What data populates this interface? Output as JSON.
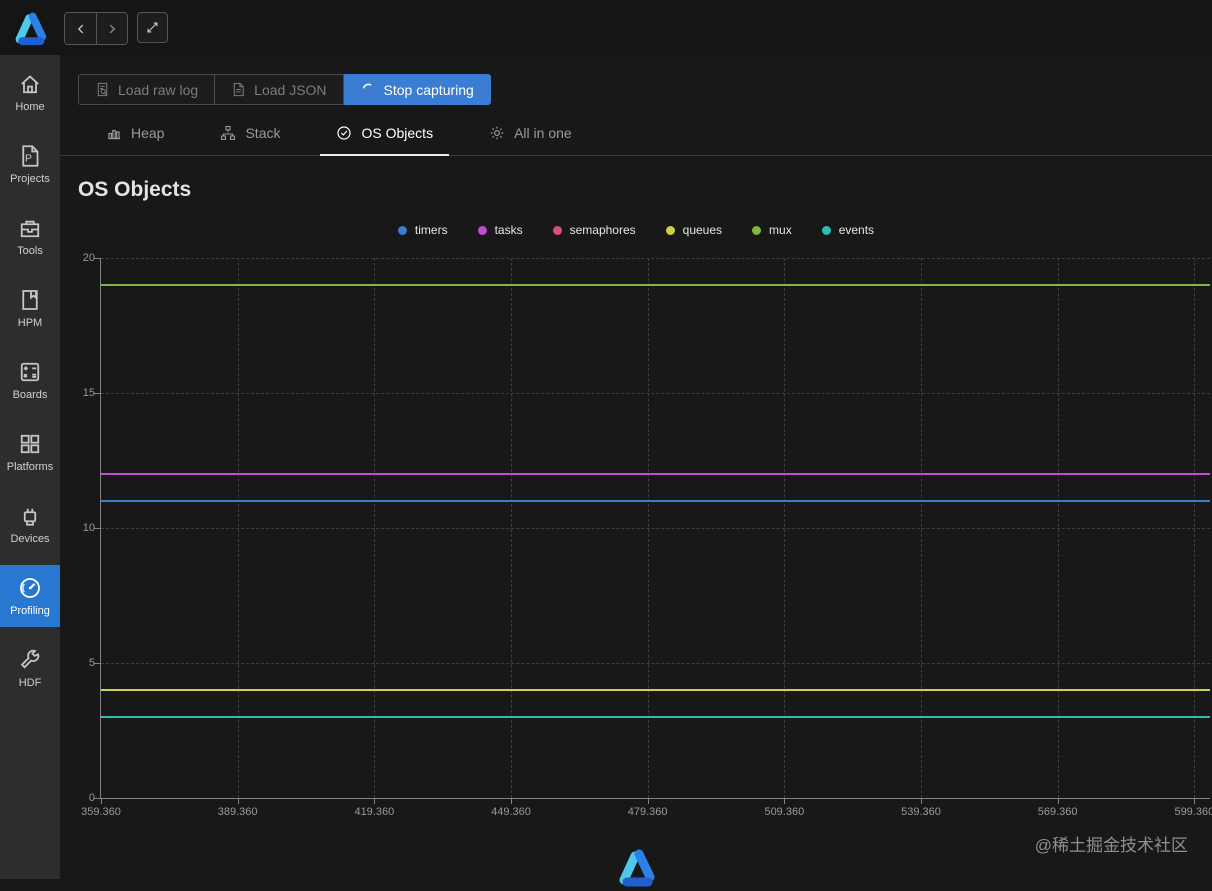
{
  "topbar": {
    "back": "chevron-left",
    "forward": "chevron-right",
    "expand": "expand-arrows"
  },
  "sidebar": {
    "items": [
      {
        "id": "home",
        "label": "Home"
      },
      {
        "id": "projects",
        "label": "Projects"
      },
      {
        "id": "tools",
        "label": "Tools"
      },
      {
        "id": "hpm",
        "label": "HPM"
      },
      {
        "id": "boards",
        "label": "Boards"
      },
      {
        "id": "platforms",
        "label": "Platforms"
      },
      {
        "id": "devices",
        "label": "Devices"
      },
      {
        "id": "profiling",
        "label": "Profiling",
        "active": true
      },
      {
        "id": "hdf",
        "label": "HDF"
      }
    ]
  },
  "toolbar": {
    "load_raw_log": "Load raw log",
    "load_json": "Load JSON",
    "stop_capturing": "Stop capturing"
  },
  "tabs": [
    {
      "label": "Heap"
    },
    {
      "label": "Stack"
    },
    {
      "label": "OS Objects",
      "active": true
    },
    {
      "label": "All in one"
    }
  ],
  "page": {
    "title": "OS Objects"
  },
  "watermark": "@稀土掘金技术社区",
  "colors": {
    "sidebar_active": "#2878d2",
    "button_primary": "#3c7dd4",
    "axis": "#848484",
    "grid": "#3e3e3e"
  },
  "chart_data": {
    "type": "line",
    "title": "OS Objects",
    "legend_position": "top",
    "grid": true,
    "ylim": [
      0,
      20
    ],
    "yticks": [
      0,
      5,
      10,
      15,
      20
    ],
    "xlim": [
      359.36,
      602.8
    ],
    "xticks": [
      "359.360",
      "389.360",
      "419.360",
      "449.360",
      "479.360",
      "509.360",
      "539.360",
      "569.360",
      "599.360"
    ],
    "series": [
      {
        "name": "timers",
        "color": "#3f7ccf",
        "value": 11
      },
      {
        "name": "tasks",
        "color": "#bf4fd0",
        "value": 12
      },
      {
        "name": "semaphores",
        "color": "#e04e78",
        "value": 12
      },
      {
        "name": "queues",
        "color": "#d0ce4a",
        "value": 4
      },
      {
        "name": "mux",
        "color": "#7eb73f",
        "value": 19
      },
      {
        "name": "events",
        "color": "#2cbcb4",
        "value": 3
      }
    ]
  }
}
